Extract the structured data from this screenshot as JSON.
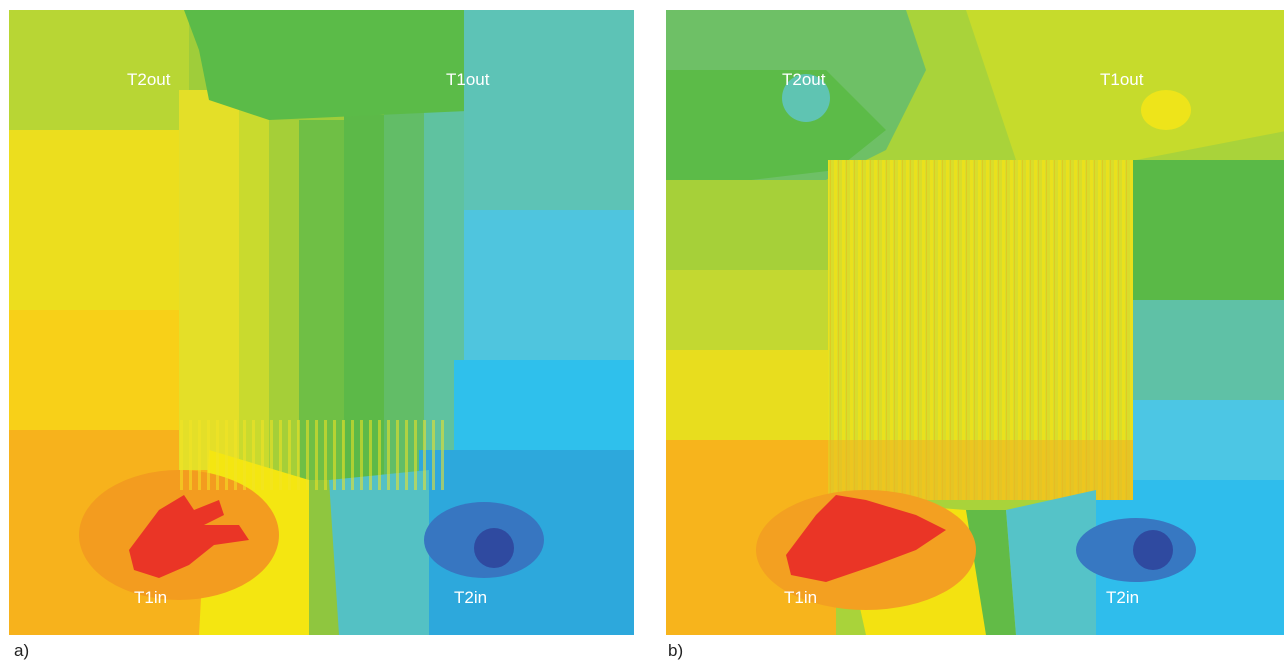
{
  "figure": {
    "panels": [
      {
        "sub_label": "a)",
        "ports": {
          "t2out": "T2out",
          "t1out": "T1out",
          "t1in": "T1in",
          "t2in": "T2in"
        }
      },
      {
        "sub_label": "b)",
        "ports": {
          "t2out": "T2out",
          "t1out": "T1out",
          "t1in": "T1in",
          "t2in": "T2in"
        }
      }
    ]
  },
  "colors": {
    "hot_red": "#ee3528",
    "orange": "#f6a020",
    "yellow": "#f4e411",
    "yellow_green": "#c7db30",
    "green": "#5cba47",
    "teal": "#5cc4b3",
    "light_blue": "#49c6e4",
    "blue": "#2eafe0",
    "dark_blue": "#2f4da0"
  }
}
